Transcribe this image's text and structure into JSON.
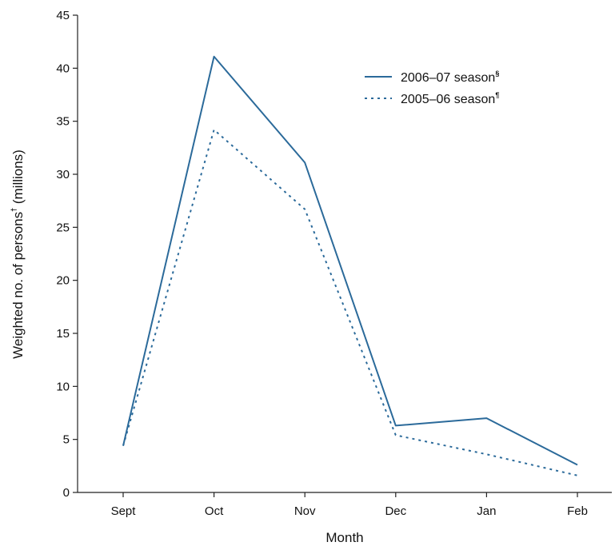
{
  "chart_data": {
    "type": "line",
    "categories": [
      "Sept",
      "Oct",
      "Nov",
      "Dec",
      "Jan",
      "Feb"
    ],
    "series": [
      {
        "name": "2006–07 season",
        "name_sup": "§",
        "style": "solid",
        "values": [
          4.4,
          41.1,
          31.1,
          6.3,
          7.0,
          2.6
        ]
      },
      {
        "name": "2005–06 season",
        "name_sup": "¶",
        "style": "dotted",
        "values": [
          4.4,
          34.2,
          26.7,
          5.4,
          3.6,
          1.6
        ]
      }
    ],
    "xlabel": "Month",
    "ylabel": "Weighted no. of persons",
    "ylabel_sup": "†",
    "ylabel_suffix": " (millions)",
    "ylim": [
      0,
      45
    ],
    "yticks": [
      0,
      5,
      10,
      15,
      20,
      25,
      30,
      35,
      40,
      45
    ],
    "grid": false,
    "legend_position": "top-right",
    "colors": {
      "line": "#2b6a9a",
      "axis": "#222222"
    }
  }
}
